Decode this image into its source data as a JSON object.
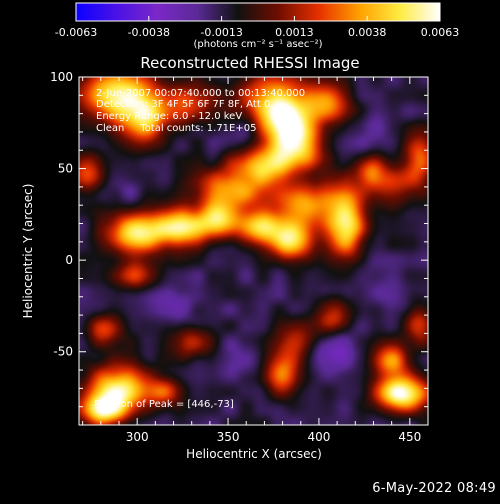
{
  "chart_data": {
    "type": "heatmap",
    "title": "Reconstructed RHESSI Image",
    "xlabel": "Heliocentric X (arcsec)",
    "ylabel": "Heliocentric Y (arcsec)",
    "xlim": [
      268,
      460
    ],
    "ylim": [
      -90,
      100
    ],
    "x_ticks": [
      "300",
      "350",
      "400",
      "450"
    ],
    "y_ticks": [
      "-50",
      "0",
      "50",
      "100"
    ],
    "grid": false,
    "colorbar": {
      "ticks": [
        "-0.0063",
        "-0.0038",
        "-0.0013",
        "0.0013",
        "0.0038",
        "0.0063"
      ],
      "range": [
        -0.0063,
        0.0063
      ],
      "units": "(photons cm⁻² s⁻¹ asec⁻²)",
      "colors": [
        "#0b00ff",
        "#4a12e6",
        "#7a28c8",
        "#5a2a96",
        "#111111",
        "#6f0d00",
        "#e63000",
        "#ff9f00",
        "#ffeb40",
        "#ffffff"
      ]
    },
    "annotations": [
      "2-Jun-2007 00:07:40.000 to 00:13:40.000",
      "Detectors: 3F 4F 5F 6F 7F 8F, Att 0",
      "Energy Range: 6.0 - 12.0 keV",
      "Clean     Total counts: 1.71E+05"
    ],
    "peak_label": "Position of Peak = [446,-73]",
    "peak": [
      446,
      -73
    ],
    "features": [
      {
        "x": 290,
        "y": 90,
        "value": 0.005,
        "sx": 15,
        "sy": 10
      },
      {
        "x": 305,
        "y": 75,
        "value": 0.004,
        "sx": 10,
        "sy": 10
      },
      {
        "x": 330,
        "y": 85,
        "value": 0.0018,
        "sx": 9,
        "sy": 8
      },
      {
        "x": 375,
        "y": 88,
        "value": 0.004,
        "sx": 14,
        "sy": 9
      },
      {
        "x": 382,
        "y": 75,
        "value": 0.0048,
        "sx": 9,
        "sy": 8
      },
      {
        "x": 388,
        "y": 62,
        "value": 0.0045,
        "sx": 10,
        "sy": 8
      },
      {
        "x": 370,
        "y": 52,
        "value": 0.004,
        "sx": 12,
        "sy": 7
      },
      {
        "x": 405,
        "y": 85,
        "value": 0.0025,
        "sx": 9,
        "sy": 8
      },
      {
        "x": 440,
        "y": 40,
        "value": 0.0016,
        "sx": 10,
        "sy": 8
      },
      {
        "x": 352,
        "y": 38,
        "value": 0.0035,
        "sx": 14,
        "sy": 8
      },
      {
        "x": 392,
        "y": 30,
        "value": 0.004,
        "sx": 12,
        "sy": 9
      },
      {
        "x": 300,
        "y": 15,
        "value": 0.0055,
        "sx": 12,
        "sy": 8
      },
      {
        "x": 325,
        "y": 18,
        "value": 0.0045,
        "sx": 10,
        "sy": 7
      },
      {
        "x": 345,
        "y": 22,
        "value": 0.004,
        "sx": 8,
        "sy": 7
      },
      {
        "x": 368,
        "y": 18,
        "value": 0.0045,
        "sx": 9,
        "sy": 6
      },
      {
        "x": 385,
        "y": 10,
        "value": 0.005,
        "sx": 8,
        "sy": 7
      },
      {
        "x": 415,
        "y": 20,
        "value": 0.0052,
        "sx": 7,
        "sy": 14
      },
      {
        "x": 428,
        "y": 48,
        "value": 0.0022,
        "sx": 6,
        "sy": 6
      },
      {
        "x": 300,
        "y": -8,
        "value": 0.0018,
        "sx": 8,
        "sy": 6
      },
      {
        "x": 272,
        "y": 48,
        "value": 0.0022,
        "sx": 6,
        "sy": 8
      },
      {
        "x": 282,
        "y": -38,
        "value": 0.0018,
        "sx": 7,
        "sy": 6
      },
      {
        "x": 330,
        "y": -45,
        "value": 0.002,
        "sx": 8,
        "sy": 6
      },
      {
        "x": 392,
        "y": -45,
        "value": 0.0025,
        "sx": 10,
        "sy": 8
      },
      {
        "x": 380,
        "y": -62,
        "value": 0.003,
        "sx": 7,
        "sy": 9
      },
      {
        "x": 408,
        "y": -30,
        "value": 0.002,
        "sx": 7,
        "sy": 7
      },
      {
        "x": 290,
        "y": -70,
        "value": 0.005,
        "sx": 12,
        "sy": 9
      },
      {
        "x": 282,
        "y": -82,
        "value": 0.0045,
        "sx": 9,
        "sy": 6
      },
      {
        "x": 315,
        "y": -72,
        "value": 0.0018,
        "sx": 6,
        "sy": 6
      },
      {
        "x": 446,
        "y": -73,
        "value": 0.0063,
        "sx": 10,
        "sy": 7
      },
      {
        "x": 440,
        "y": -55,
        "value": 0.003,
        "sx": 7,
        "sy": 7
      },
      {
        "x": 455,
        "y": -35,
        "value": 0.0022,
        "sx": 6,
        "sy": 8
      },
      {
        "x": 455,
        "y": 55,
        "value": 0.0025,
        "sx": 6,
        "sy": 10
      },
      {
        "x": 350,
        "y": 0,
        "value": -0.0016,
        "sx": 10,
        "sy": 8
      },
      {
        "x": 420,
        "y": -5,
        "value": -0.0018,
        "sx": 9,
        "sy": 7
      },
      {
        "x": 320,
        "y": -25,
        "value": -0.0025,
        "sx": 10,
        "sy": 6
      },
      {
        "x": 358,
        "y": -55,
        "value": -0.0025,
        "sx": 9,
        "sy": 7
      },
      {
        "x": 402,
        "y": -48,
        "value": -0.0048,
        "sx": 10,
        "sy": 8
      },
      {
        "x": 312,
        "y": 68,
        "value": -0.0025,
        "sx": 9,
        "sy": 7
      },
      {
        "x": 355,
        "y": 68,
        "value": -0.002,
        "sx": 9,
        "sy": 6
      },
      {
        "x": 430,
        "y": 72,
        "value": -0.0022,
        "sx": 8,
        "sy": 8
      },
      {
        "x": 440,
        "y": -20,
        "value": -0.0022,
        "sx": 8,
        "sy": 8
      },
      {
        "x": 290,
        "y": 38,
        "value": -0.002,
        "sx": 7,
        "sy": 6
      },
      {
        "x": 375,
        "y": -20,
        "value": -0.0015,
        "sx": 8,
        "sy": 6
      }
    ],
    "background_value": -0.0013
  },
  "footer": {
    "date_stamp": "6-May-2022 08:49"
  }
}
